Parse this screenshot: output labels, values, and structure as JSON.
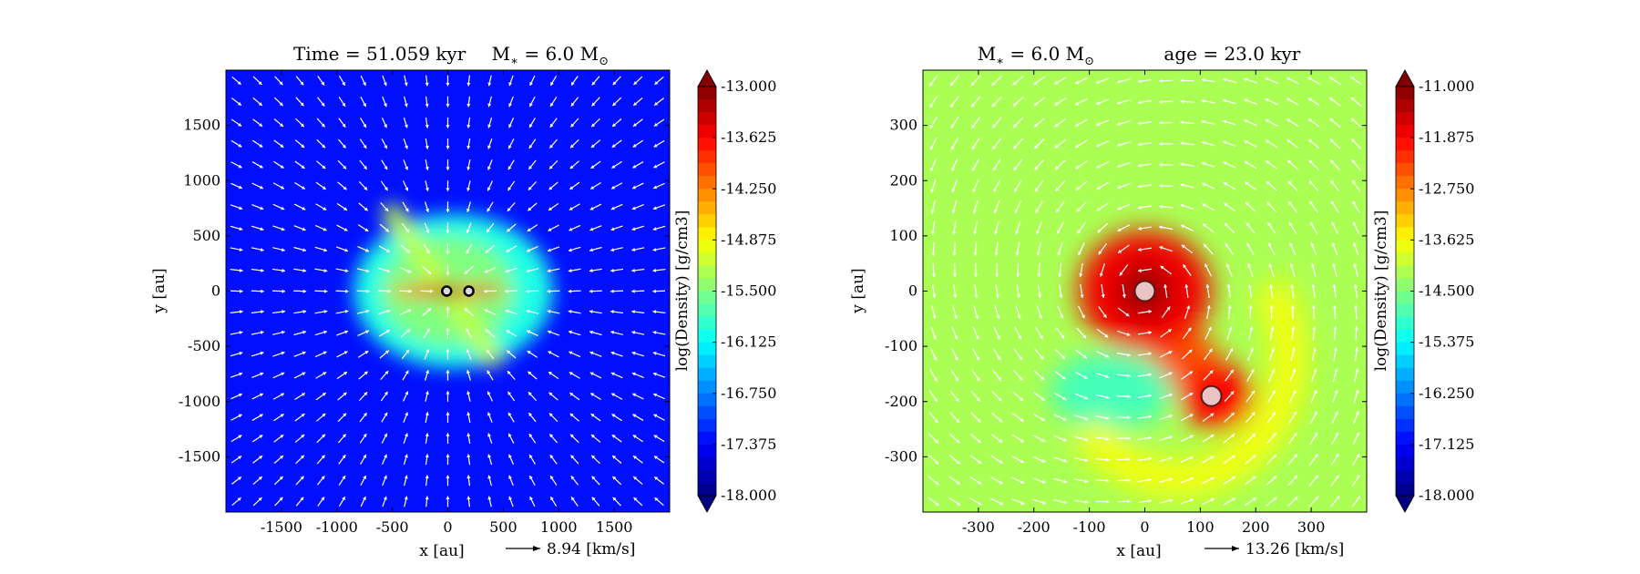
{
  "chart_data": [
    {
      "type": "heatmap",
      "title": "Time = 51.059 kyr    M$_*$ = 6.0 M$_\\odot$",
      "title_parts": {
        "time": "Time = 51.059 kyr",
        "mass": "M",
        "mass_sub": "∗",
        "mass_eq": " = 6.0 M",
        "mass_unit_sub": "⊙"
      },
      "xlabel": "x [au]",
      "ylabel": "y [au]",
      "xlim": [
        -2000,
        2000
      ],
      "ylim": [
        -2000,
        2000
      ],
      "xticks": [
        -1500,
        -1000,
        -500,
        0,
        500,
        1000,
        1500
      ],
      "yticks": [
        -1500,
        -1000,
        -500,
        0,
        500,
        1000,
        1500
      ],
      "colorbar": {
        "label": "log(Density) [g/cm3]",
        "min": -18.0,
        "max": -13.0,
        "ticks": [
          "-13.000",
          "-13.625",
          "-14.250",
          "-14.875",
          "-15.500",
          "-16.125",
          "-16.750",
          "-17.375",
          "-18.000"
        ],
        "extend": "both",
        "colormap": "jet"
      },
      "velocity_key": {
        "label": "8.94 [km/s]"
      },
      "background_level": -17.3,
      "features": [
        {
          "kind": "envelope",
          "cx": 50,
          "cy": 0,
          "rx": 900,
          "ry": 700,
          "level": -16.0
        },
        {
          "kind": "envelope",
          "cx": 0,
          "cy": 0,
          "rx": 600,
          "ry": 500,
          "level": -15.5
        },
        {
          "kind": "outflow-band",
          "x0": -500,
          "y0": 700,
          "x1": 400,
          "y1": -600,
          "level": -15.2
        },
        {
          "kind": "disk",
          "cx": 0,
          "cy": 0,
          "rx": 550,
          "ry": 60,
          "level": -14.2
        },
        {
          "kind": "core",
          "cx": -230,
          "cy": 0,
          "rx": 120,
          "ry": 40,
          "level": -13.6
        },
        {
          "kind": "core",
          "cx": 350,
          "cy": 0,
          "rx": 120,
          "ry": 50,
          "level": -13.5
        },
        {
          "kind": "core",
          "cx": 0,
          "cy": 0,
          "rx": 130,
          "ry": 50,
          "level": -13.0
        }
      ],
      "sinks": [
        {
          "x": -10,
          "y": 0
        },
        {
          "x": 190,
          "y": 0
        }
      ],
      "flow_pattern": "infall"
    },
    {
      "type": "heatmap",
      "title": "M$_*$ = 6.0 M$_\\odot$        age = 23.0 kyr",
      "title_parts": {
        "mass": "M",
        "mass_sub": "∗",
        "mass_eq": " = 6.0 M",
        "mass_unit_sub": "⊙",
        "age": "age = 23.0 kyr"
      },
      "xlabel": "x [au]",
      "ylabel": "y [au]",
      "xlim": [
        -400,
        400
      ],
      "ylim": [
        -400,
        400
      ],
      "xticks": [
        -300,
        -200,
        -100,
        0,
        100,
        200,
        300
      ],
      "yticks": [
        -300,
        -200,
        -100,
        0,
        100,
        200,
        300
      ],
      "colorbar": {
        "label": "log(Density) [g/cm3]",
        "min": -18.0,
        "max": -11.0,
        "ticks": [
          "-11.000",
          "-11.875",
          "-12.750",
          "-13.625",
          "-14.500",
          "-15.375",
          "-16.250",
          "-17.125",
          "-18.000"
        ],
        "extend": "both",
        "colormap": "jet"
      },
      "velocity_key": {
        "label": "13.26 [km/s]"
      },
      "background_level": -14.2,
      "features": [
        {
          "kind": "low-density",
          "cx": -60,
          "cy": -180,
          "rx": 110,
          "ry": 70,
          "level": -14.9
        },
        {
          "kind": "spiral",
          "cx": 60,
          "cy": -120,
          "rx": 200,
          "ry": 220,
          "level": -13.7
        },
        {
          "kind": "bridge",
          "x0": -20,
          "y0": 0,
          "x1": 130,
          "y1": -190,
          "level": -12.4
        },
        {
          "kind": "core",
          "cx": 0,
          "cy": 0,
          "rx": 120,
          "ry": 110,
          "level": -11.8
        },
        {
          "kind": "core",
          "cx": 0,
          "cy": 0,
          "rx": 50,
          "ry": 50,
          "level": -11.2
        },
        {
          "kind": "core",
          "cx": 130,
          "cy": -190,
          "rx": 65,
          "ry": 60,
          "level": -11.9
        }
      ],
      "sinks": [
        {
          "x": 0,
          "y": 0,
          "size": "large"
        },
        {
          "x": 120,
          "y": -190,
          "size": "large"
        }
      ],
      "flow_pattern": "rotation"
    }
  ]
}
